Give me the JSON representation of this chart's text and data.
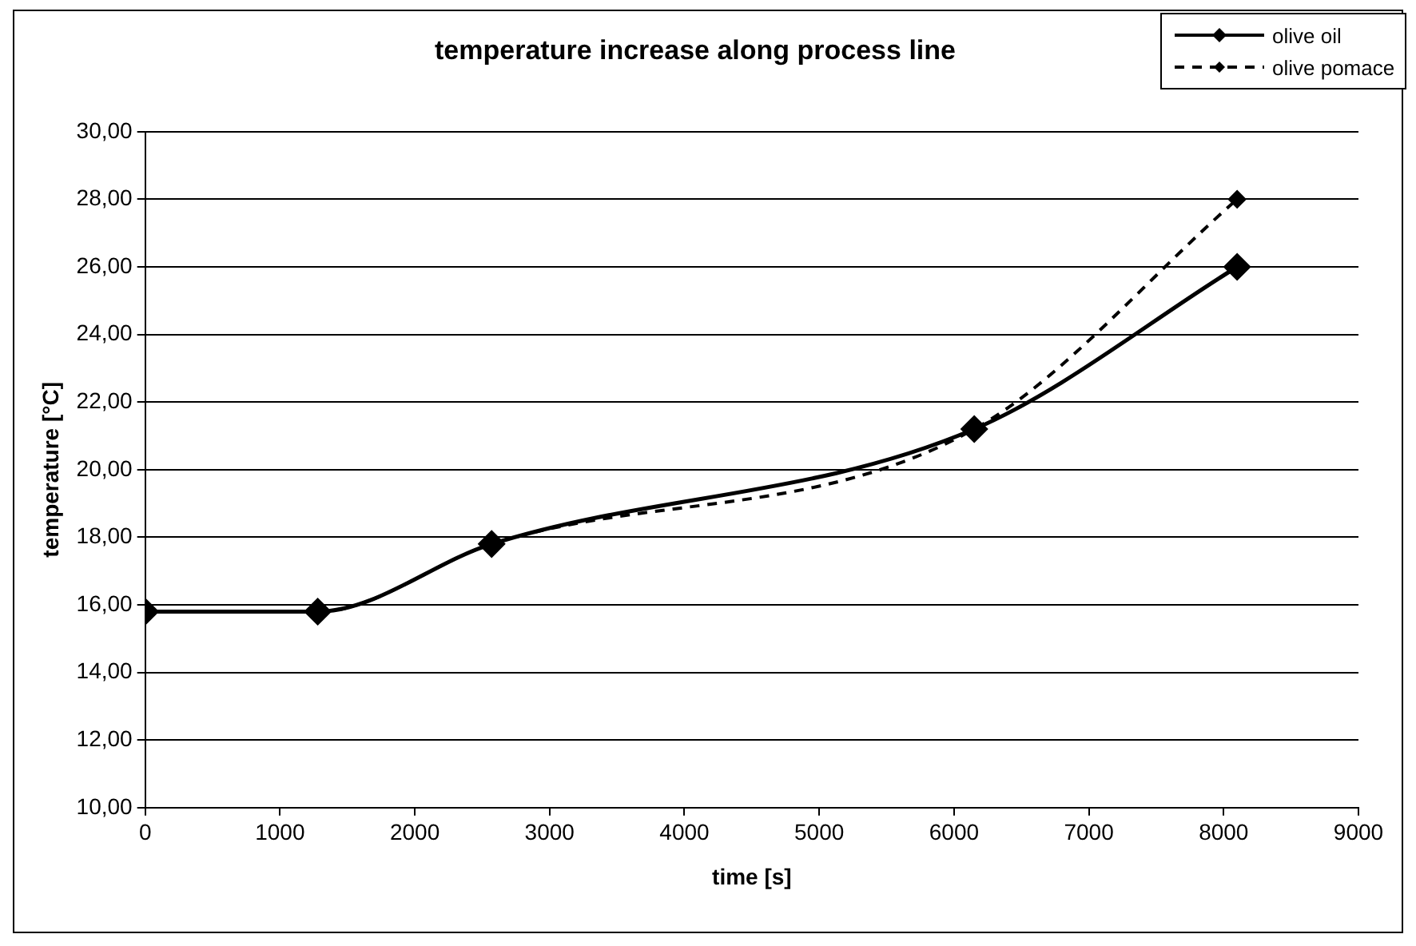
{
  "chart_data": {
    "type": "line",
    "title": "temperature increase along process line",
    "xlabel": "time [s]",
    "ylabel": "temperature [°C]",
    "x": [
      0,
      1280,
      2570,
      6150,
      8100
    ],
    "series": [
      {
        "name": "olive oil",
        "color": "#000000",
        "values": [
          15.8,
          15.8,
          17.8,
          21.2,
          26.0
        ],
        "line_style": "solid"
      },
      {
        "name": "olive pomace",
        "color": "#000000",
        "values": [
          15.8,
          15.8,
          17.8,
          21.2,
          28.0
        ],
        "line_style": "dashed"
      }
    ],
    "xlim": [
      0,
      9000
    ],
    "xticks": [
      0,
      1000,
      2000,
      3000,
      4000,
      5000,
      6000,
      7000,
      8000,
      9000
    ],
    "ylim": [
      10,
      30
    ],
    "yticks": [
      {
        "value": 10,
        "label": "10,00"
      },
      {
        "value": 12,
        "label": "12,00"
      },
      {
        "value": 14,
        "label": "14,00"
      },
      {
        "value": 16,
        "label": "16,00"
      },
      {
        "value": 18,
        "label": "18,00"
      },
      {
        "value": 20,
        "label": "20,00"
      },
      {
        "value": 22,
        "label": "22,00"
      },
      {
        "value": 24,
        "label": "24,00"
      },
      {
        "value": 26,
        "label": "26,00"
      },
      {
        "value": 28,
        "label": "28,00"
      },
      {
        "value": 30,
        "label": "30,00"
      }
    ],
    "grid": "y",
    "legend": "top right",
    "marker": "diamond"
  }
}
